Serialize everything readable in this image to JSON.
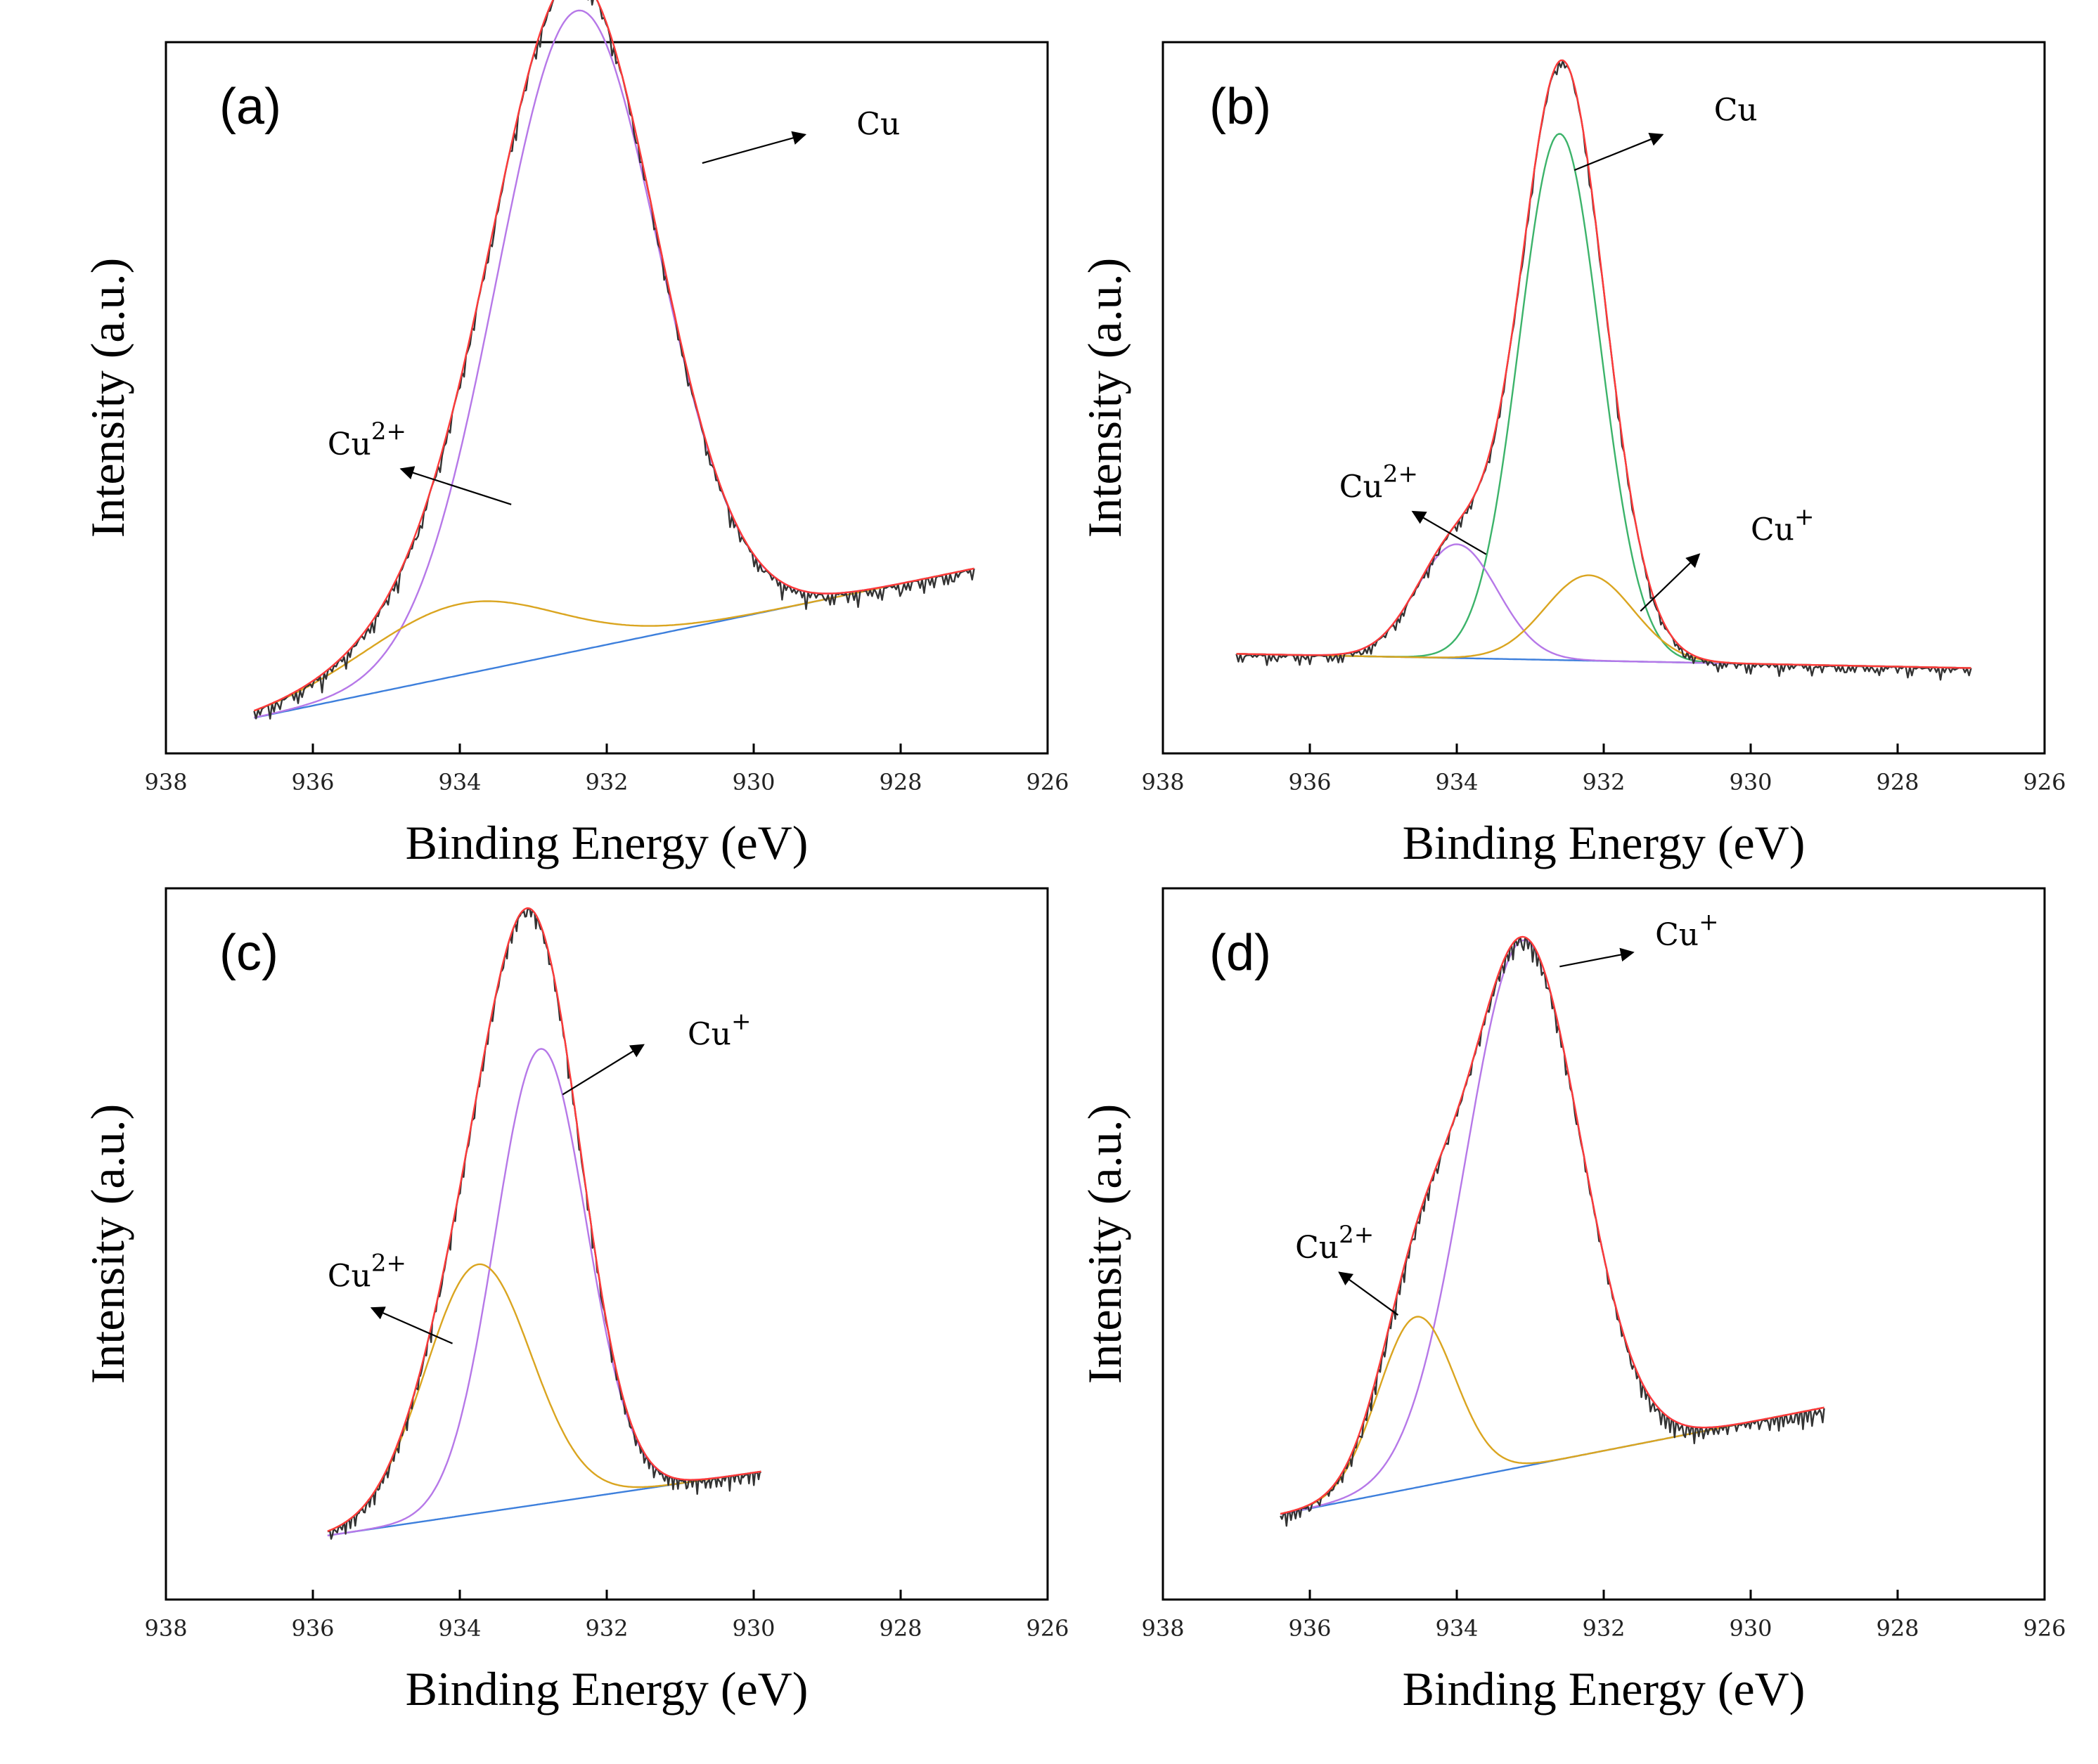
{
  "chart_data": [
    {
      "type": "line",
      "panel_label": "(a)",
      "xlabel": "Binding Energy (eV)",
      "ylabel": "Intensity (a.u.)",
      "xlim": [
        938,
        926
      ],
      "x_ticks": [
        938,
        936,
        934,
        932,
        930,
        928,
        926
      ],
      "x_range": [
        936.8,
        927.0
      ],
      "baseline": [
        0.05,
        0.26
      ],
      "noise_amp": 0.012,
      "components": [
        {
          "name": "Cu",
          "color": "#b678e8",
          "center": 932.4,
          "amp": 0.9,
          "sigma": 1.1
        },
        {
          "name": "Cu2+",
          "color": "#daa520",
          "center": 934.0,
          "amp": 0.1,
          "sigma": 1.3
        }
      ],
      "series": [
        {
          "name": "Raw data",
          "color": "#333333"
        },
        {
          "name": "Fit sum",
          "color": "#ff3a3a"
        },
        {
          "name": "Background",
          "color": "#3d7fdc"
        }
      ],
      "annotations": [
        {
          "base": "Cu",
          "sup": "",
          "at_x": 931.1,
          "at_comp": "sum",
          "tail": [
            930.7,
            0.83
          ],
          "head": [
            929.3,
            0.87
          ],
          "text_pos": [
            928.6,
            0.87
          ]
        },
        {
          "base": "Cu",
          "sup": "2+",
          "at_x": 933.3,
          "at_comp": "Cu2+",
          "tail": [
            933.3,
            0.35
          ],
          "head": [
            934.8,
            0.4
          ],
          "text_pos": [
            935.8,
            0.42
          ]
        }
      ]
    },
    {
      "type": "line",
      "panel_label": "(b)",
      "xlabel": "Binding Energy (eV)",
      "ylabel": "Intensity (a.u.)",
      "xlim": [
        938,
        926
      ],
      "x_ticks": [
        938,
        936,
        934,
        932,
        930,
        928,
        926
      ],
      "x_range": [
        937.0,
        927.0
      ],
      "baseline": [
        0.14,
        0.12
      ],
      "noise_amp": 0.008,
      "components": [
        {
          "name": "Cu",
          "color": "#3cb36a",
          "center": 932.6,
          "amp": 0.74,
          "sigma": 0.55
        },
        {
          "name": "Cu2+",
          "color": "#b678e8",
          "center": 934.0,
          "amp": 0.16,
          "sigma": 0.55
        },
        {
          "name": "Cu+",
          "color": "#daa520",
          "center": 932.2,
          "amp": 0.12,
          "sigma": 0.6
        }
      ],
      "series": [
        {
          "name": "Raw data",
          "color": "#333333"
        },
        {
          "name": "Fit sum",
          "color": "#ff3a3a"
        },
        {
          "name": "Background",
          "color": "#3d7fdc"
        }
      ],
      "annotations": [
        {
          "base": "Cu",
          "sup": "",
          "at_x": 932.4,
          "at_comp": "sum",
          "tail": [
            932.4,
            0.82
          ],
          "head": [
            931.2,
            0.87
          ],
          "text_pos": [
            930.5,
            0.89
          ]
        },
        {
          "base": "Cu",
          "sup": "2+",
          "at_x": 933.6,
          "at_comp": "Cu2+",
          "tail": [
            933.6,
            0.28
          ],
          "head": [
            934.6,
            0.34
          ],
          "text_pos": [
            935.6,
            0.36
          ]
        },
        {
          "base": "Cu",
          "sup": "+",
          "at_x": 931.5,
          "at_comp": "Cu+",
          "tail": [
            931.5,
            0.2
          ],
          "head": [
            930.7,
            0.28
          ],
          "text_pos": [
            930.0,
            0.3
          ]
        }
      ]
    },
    {
      "type": "line",
      "panel_label": "(c)",
      "xlabel": "Binding Energy (eV)",
      "ylabel": "Intensity (a.u.)",
      "xlim": [
        938,
        926
      ],
      "x_ticks": [
        938,
        936,
        934,
        932,
        930,
        928,
        926
      ],
      "x_range": [
        935.8,
        929.9
      ],
      "baseline": [
        0.09,
        0.18
      ],
      "noise_amp": 0.01,
      "components": [
        {
          "name": "Cu+",
          "color": "#b678e8",
          "center": 932.9,
          "amp": 0.64,
          "sigma": 0.62
        },
        {
          "name": "Cu2+",
          "color": "#daa520",
          "center": 933.75,
          "amp": 0.35,
          "sigma": 0.72
        }
      ],
      "series": [
        {
          "name": "Raw data",
          "color": "#333333"
        },
        {
          "name": "Fit sum",
          "color": "#ff3a3a"
        },
        {
          "name": "Background",
          "color": "#3d7fdc"
        }
      ],
      "annotations": [
        {
          "base": "Cu",
          "sup": "+",
          "at_x": 932.6,
          "at_comp": "Cu+",
          "tail": [
            932.6,
            0.71
          ],
          "head": [
            931.5,
            0.78
          ],
          "text_pos": [
            930.9,
            0.78
          ]
        },
        {
          "base": "Cu",
          "sup": "2+",
          "at_x": 934.1,
          "at_comp": "Cu2+",
          "tail": [
            934.1,
            0.36
          ],
          "head": [
            935.2,
            0.41
          ],
          "text_pos": [
            935.8,
            0.44
          ]
        }
      ]
    },
    {
      "type": "line",
      "panel_label": "(d)",
      "xlabel": "Binding Energy (eV)",
      "ylabel": "Intensity (a.u.)",
      "xlim": [
        938,
        926
      ],
      "x_ticks": [
        938,
        936,
        934,
        932,
        930,
        928,
        926
      ],
      "x_range": [
        936.4,
        929.0
      ],
      "baseline": [
        0.12,
        0.27
      ],
      "noise_amp": 0.012,
      "components": [
        {
          "name": "Cu+",
          "color": "#b678e8",
          "center": 933.1,
          "amp": 0.74,
          "sigma": 0.78
        },
        {
          "name": "Cu2+",
          "color": "#daa520",
          "center": 934.55,
          "amp": 0.24,
          "sigma": 0.52
        }
      ],
      "series": [
        {
          "name": "Raw data",
          "color": "#333333"
        },
        {
          "name": "Fit sum",
          "color": "#ff3a3a"
        },
        {
          "name": "Background",
          "color": "#3d7fdc"
        }
      ],
      "annotations": [
        {
          "base": "Cu",
          "sup": "+",
          "at_x": 932.6,
          "at_comp": "sum",
          "tail": [
            932.6,
            0.89
          ],
          "head": [
            931.6,
            0.91
          ],
          "text_pos": [
            931.3,
            0.92
          ]
        },
        {
          "base": "Cu",
          "sup": "2+",
          "at_x": 934.8,
          "at_comp": "Cu2+",
          "tail": [
            934.8,
            0.4
          ],
          "head": [
            935.6,
            0.46
          ],
          "text_pos": [
            936.2,
            0.48
          ]
        }
      ]
    }
  ]
}
